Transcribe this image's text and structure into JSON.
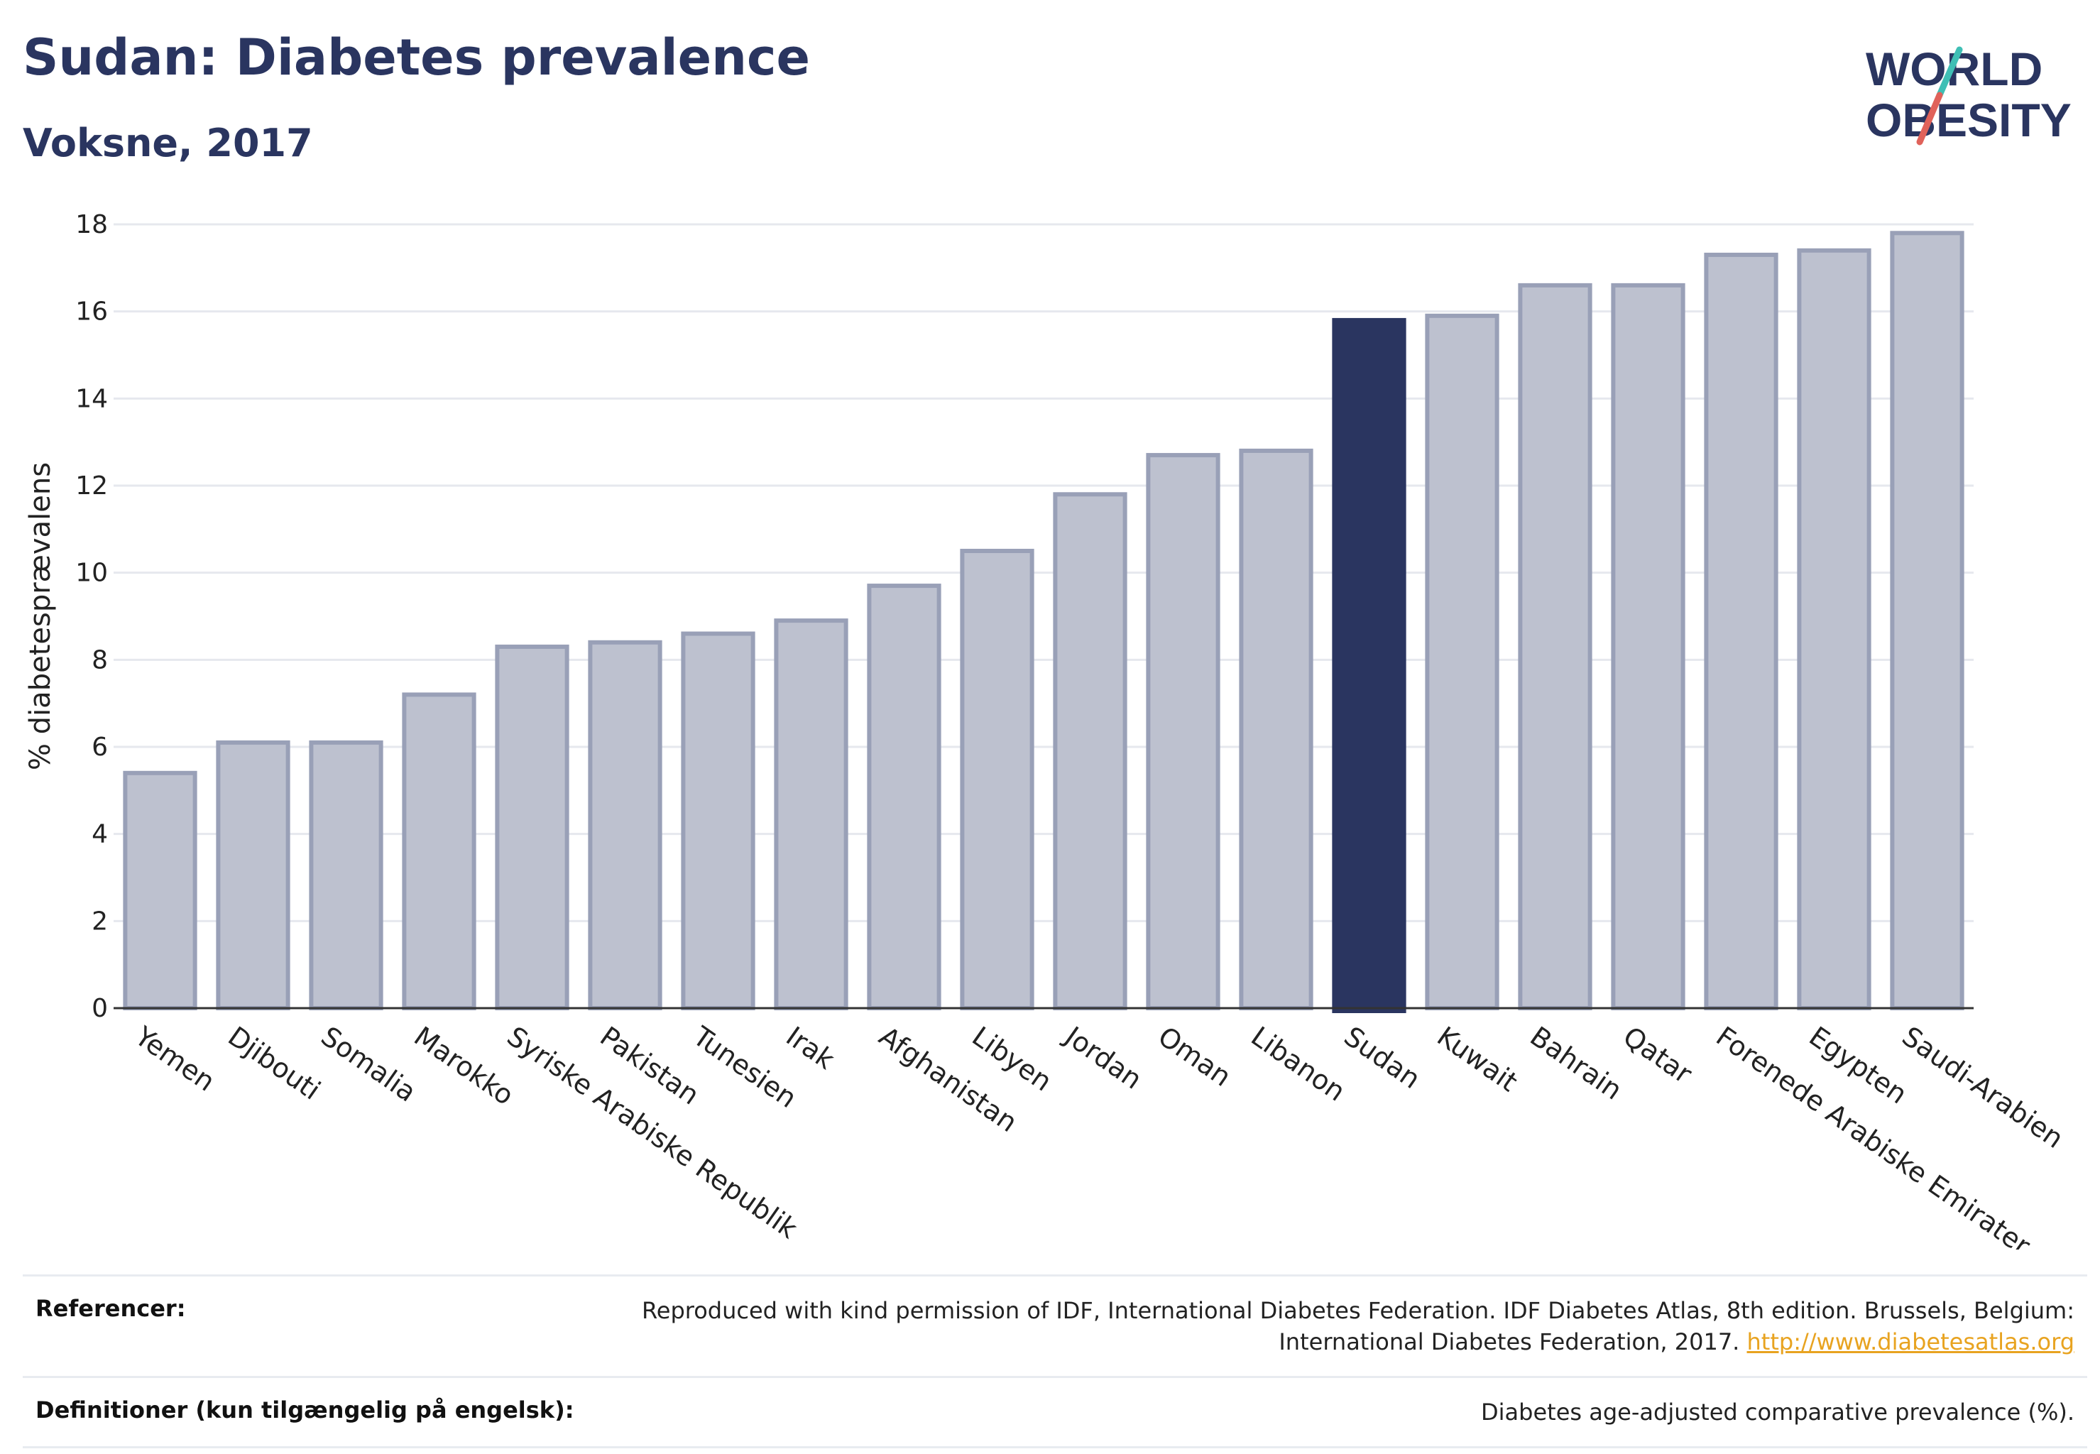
{
  "header": {
    "title": "Sudan: Diabetes prevalence",
    "subtitle": "Voksne, 2017"
  },
  "logo": {
    "line1": "WORLD",
    "line2": "OBESITY",
    "colors": {
      "text": "#2a3560",
      "slash_teal": "#3fbfb5",
      "slash_red": "#e0625a"
    }
  },
  "chart_data": {
    "type": "bar",
    "ylabel": "% diabetesprævalens",
    "xlabel": "",
    "ylim": [
      0,
      18
    ],
    "yticks": [
      0,
      2,
      4,
      6,
      8,
      10,
      12,
      14,
      16,
      18
    ],
    "grid": true,
    "highlight": "Sudan",
    "colors": {
      "bar": "#bdc1cf",
      "bar_border": "#99a0b7",
      "highlight": "#2a3560",
      "grid": "#e6e8ee",
      "axis": "#333333"
    },
    "categories": [
      "Yemen",
      "Djibouti",
      "Somalia",
      "Marokko",
      "Syriske Arabiske Republik",
      "Pakistan",
      "Tunesien",
      "Irak",
      "Afghanistan",
      "Libyen",
      "Jordan",
      "Oman",
      "Libanon",
      "Sudan",
      "Kuwait",
      "Bahrain",
      "Qatar",
      "Forenede Arabiske Emirater",
      "Egypten",
      "Saudi-Arabien"
    ],
    "values": [
      5.4,
      6.1,
      6.1,
      7.2,
      8.3,
      8.4,
      8.6,
      8.9,
      9.7,
      10.5,
      11.8,
      12.7,
      12.8,
      15.8,
      15.9,
      16.6,
      16.6,
      17.3,
      17.4,
      17.8
    ]
  },
  "references": {
    "ref_label": "Referencer:",
    "ref_text": "Reproduced with kind permission of IDF, International Diabetes Federation. IDF Diabetes Atlas, 8th edition. Brussels, Belgium: International Diabetes Federation, 2017.",
    "ref_link": "http://www.diabetesatlas.org",
    "def_label": "Definitioner (kun tilgængelig på engelsk):",
    "def_text": "Diabetes age-adjusted comparative prevalence (%)."
  }
}
